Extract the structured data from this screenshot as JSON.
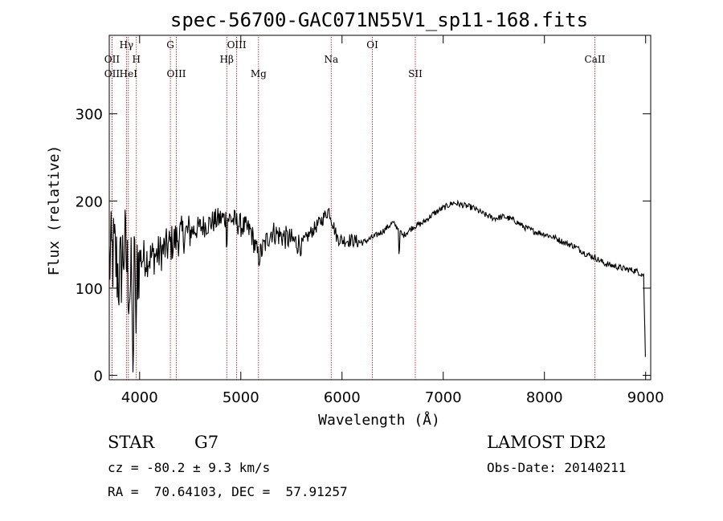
{
  "chart_data": {
    "type": "line",
    "title": "spec-56700-GAC071N55V1_sp11-168.fits",
    "xlabel": "Wavelength (Å)",
    "ylabel": "Flux (relative)",
    "xlim": [
      3700,
      9050
    ],
    "ylim": [
      -5,
      390
    ],
    "x_ticks": [
      4000,
      5000,
      6000,
      7000,
      8000,
      9000
    ],
    "y_ticks": [
      0,
      100,
      200,
      300
    ],
    "x_tick_labels": [
      "4000",
      "5000",
      "6000",
      "7000",
      "8000",
      "9000"
    ],
    "y_tick_labels": [
      "0",
      "100",
      "200",
      "300"
    ],
    "line_color": "#000000",
    "marker_color": "#b22222",
    "grid": false,
    "lines": [
      {
        "label": "Hγ",
        "x": 3870,
        "row": 0
      },
      {
        "label": "OII",
        "x": 3727,
        "row": 1
      },
      {
        "label": "H",
        "x": 3968,
        "row": 1
      },
      {
        "label": "OII",
        "x": 3727,
        "row": 2
      },
      {
        "label": "HeI",
        "x": 3889,
        "row": 2
      },
      {
        "label": "G",
        "x": 4304,
        "row": 0
      },
      {
        "label": "OIII",
        "x": 4363,
        "row": 2
      },
      {
        "label": "OIII",
        "x": 4959,
        "row": 0
      },
      {
        "label": "Hβ",
        "x": 4861,
        "row": 1
      },
      {
        "label": "Mg",
        "x": 5175,
        "row": 2
      },
      {
        "label": "Na",
        "x": 5893,
        "row": 1
      },
      {
        "label": "OI",
        "x": 6300,
        "row": 0
      },
      {
        "label": "SII",
        "x": 6724,
        "row": 2
      },
      {
        "label": "CaII",
        "x": 8498,
        "row": 1
      }
    ],
    "spectrum_anchors": {
      "x": [
        3700,
        3750,
        3800,
        3850,
        3900,
        3950,
        4000,
        4100,
        4200,
        4300,
        4400,
        4500,
        4600,
        4700,
        4800,
        4900,
        5000,
        5100,
        5175,
        5300,
        5400,
        5500,
        5600,
        5700,
        5800,
        5870,
        5900,
        5950,
        6000,
        6100,
        6200,
        6300,
        6400,
        6500,
        6560,
        6600,
        6700,
        6800,
        6900,
        7000,
        7100,
        7200,
        7300,
        7400,
        7500,
        7600,
        7700,
        7800,
        7900,
        8000,
        8100,
        8200,
        8300,
        8400,
        8500,
        8600,
        8700,
        8800,
        8900,
        8980,
        9000
      ],
      "y": [
        130,
        140,
        110,
        150,
        100,
        120,
        135,
        135,
        140,
        150,
        160,
        165,
        170,
        175,
        180,
        180,
        172,
        165,
        135,
        165,
        160,
        155,
        150,
        165,
        178,
        190,
        178,
        158,
        155,
        155,
        152,
        158,
        165,
        175,
        168,
        160,
        170,
        175,
        185,
        192,
        198,
        195,
        192,
        185,
        180,
        182,
        178,
        170,
        165,
        162,
        158,
        152,
        148,
        140,
        135,
        128,
        125,
        122,
        120,
        115,
        10
      ]
    }
  },
  "footer": {
    "object_class": "STAR",
    "subclass": "G7",
    "survey": "LAMOST DR2",
    "redshift": "cz = -80.2 ± 9.3 km/s",
    "obs_date": "Obs-Date: 20140211",
    "coords": "RA =  70.64103, DEC =  57.91257"
  }
}
